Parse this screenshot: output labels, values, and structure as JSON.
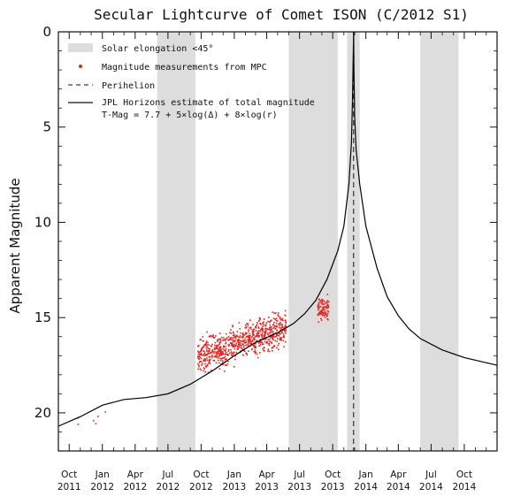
{
  "chart_data": {
    "type": "scatter",
    "title": "Secular Lightcurve of Comet ISON (C/2012 S1)",
    "ylabel": "Apparent Magnitude",
    "xlabel": "",
    "ylim": [
      22,
      0
    ],
    "y_inverted": true,
    "xlim": [
      "2011-09-01",
      "2014-12-31"
    ],
    "yticks": [
      0,
      5,
      10,
      15,
      20
    ],
    "xticks": [
      {
        "date": "2011-10-01",
        "month": "Oct",
        "year": "2011"
      },
      {
        "date": "2012-01-01",
        "month": "Jan",
        "year": "2012"
      },
      {
        "date": "2012-04-01",
        "month": "Apr",
        "year": "2012"
      },
      {
        "date": "2012-07-01",
        "month": "Jul",
        "year": "2012"
      },
      {
        "date": "2012-10-01",
        "month": "Oct",
        "year": "2012"
      },
      {
        "date": "2013-01-01",
        "month": "Jan",
        "year": "2013"
      },
      {
        "date": "2013-04-01",
        "month": "Apr",
        "year": "2013"
      },
      {
        "date": "2013-07-01",
        "month": "Jul",
        "year": "2013"
      },
      {
        "date": "2013-10-01",
        "month": "Oct",
        "year": "2013"
      },
      {
        "date": "2014-01-01",
        "month": "Jan",
        "year": "2014"
      },
      {
        "date": "2014-04-01",
        "month": "Apr",
        "year": "2014"
      },
      {
        "date": "2014-07-01",
        "month": "Jul",
        "year": "2014"
      },
      {
        "date": "2014-10-01",
        "month": "Oct",
        "year": "2014"
      }
    ],
    "legend": {
      "placement": "top-left",
      "entries": [
        {
          "key": "elongation",
          "label": "Solar elongation <45°"
        },
        {
          "key": "mpc",
          "label": "Magnitude measurements from MPC"
        },
        {
          "key": "perihelion",
          "label": "Perihelion"
        },
        {
          "key": "jpl",
          "label": "JPL Horizons estimate of total magnitude"
        }
      ],
      "formula": "T-Mag = 7.7  + 5×log(Δ) + 8×log(r)"
    },
    "solar_elongation_bands": [
      [
        "2012-06-01",
        "2012-09-15"
      ],
      [
        "2013-06-01",
        "2013-10-15"
      ],
      [
        "2013-11-10",
        "2013-12-15"
      ],
      [
        "2014-06-01",
        "2014-09-15"
      ]
    ],
    "perihelion_date": "2013-11-28",
    "jpl_curve": {
      "x": [
        "2011-09-01",
        "2011-11-01",
        "2012-01-01",
        "2012-03-01",
        "2012-05-01",
        "2012-07-01",
        "2012-09-01",
        "2012-11-01",
        "2013-01-01",
        "2013-03-01",
        "2013-05-01",
        "2013-06-15",
        "2013-07-15",
        "2013-08-15",
        "2013-09-15",
        "2013-10-15",
        "2013-11-01",
        "2013-11-15",
        "2013-11-22",
        "2013-11-25",
        "2013-11-27",
        "2013-11-28",
        "2013-11-29",
        "2013-12-01",
        "2013-12-05",
        "2013-12-15",
        "2014-01-01",
        "2014-02-01",
        "2014-03-01",
        "2014-04-01",
        "2014-05-01",
        "2014-06-01",
        "2014-08-01",
        "2014-10-01",
        "2014-12-31"
      ],
      "y": [
        20.7,
        20.2,
        19.6,
        19.3,
        19.2,
        19.0,
        18.5,
        17.8,
        17.0,
        16.3,
        15.8,
        15.3,
        14.8,
        14.1,
        13.0,
        11.5,
        10.2,
        8.0,
        5.8,
        3.5,
        1.2,
        0.0,
        2.0,
        4.5,
        6.2,
        8.0,
        10.2,
        12.4,
        13.9,
        14.9,
        15.6,
        16.1,
        16.7,
        17.1,
        17.5
      ]
    },
    "mpc_clusters": [
      {
        "name": "early",
        "x_start": "2011-10-20",
        "x_end": "2012-01-10",
        "y_center": 20.3,
        "y_spread": 0.5,
        "count": 6
      },
      {
        "name": "main",
        "x_start": "2012-09-22",
        "x_end": "2013-05-25",
        "y_center": 16.3,
        "y_spread": 1.3,
        "count": 780
      },
      {
        "name": "late",
        "x_start": "2013-08-20",
        "x_end": "2013-09-20",
        "y_center": 14.6,
        "y_spread": 1.0,
        "count": 90
      }
    ]
  },
  "colors": {
    "band": "#dddddd",
    "points": "#e8231f",
    "curve": "#000000",
    "axis": "#111111"
  }
}
